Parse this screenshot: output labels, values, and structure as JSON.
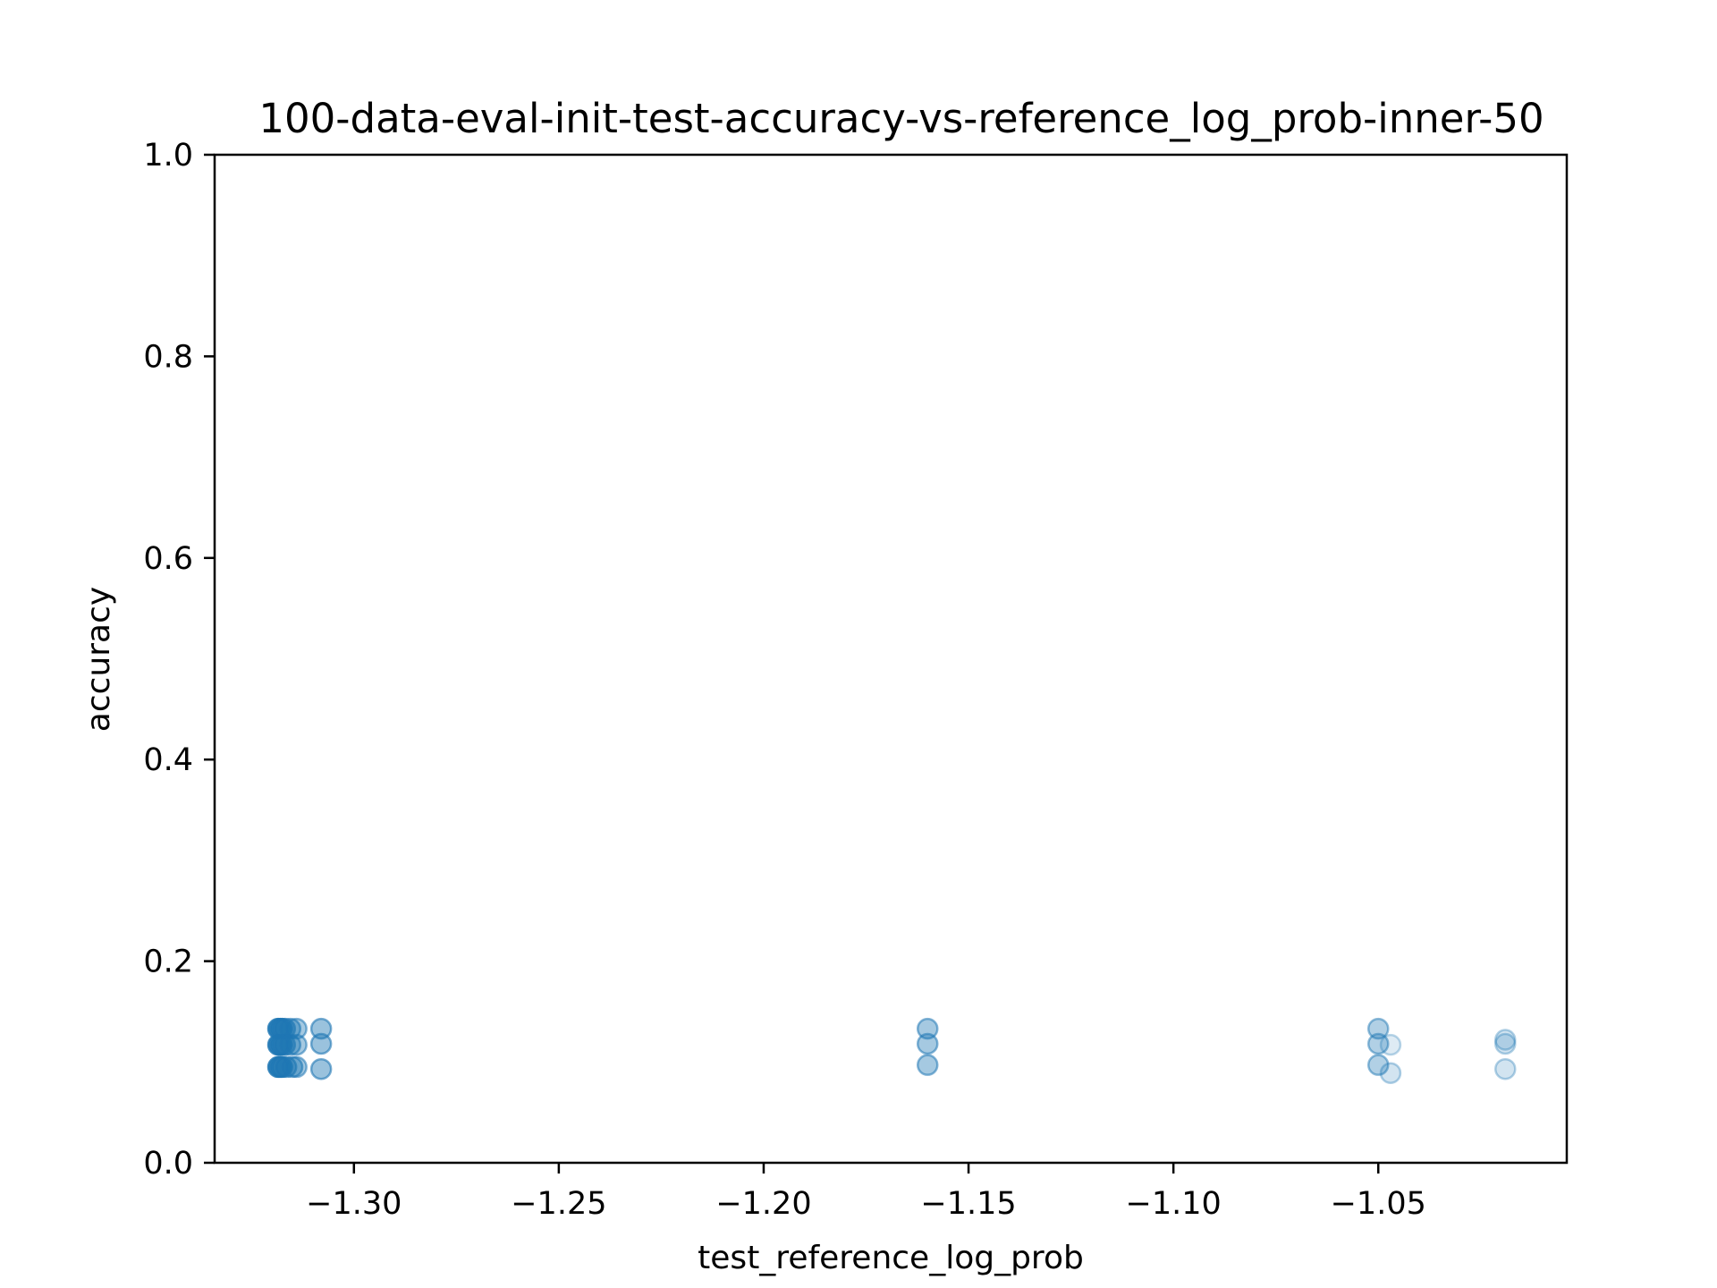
{
  "chart_data": {
    "type": "scatter",
    "title": "100-data-eval-init-test-accuracy-vs-reference_log_prob-inner-50",
    "xlabel": "test_reference_log_prob",
    "ylabel": "accuracy",
    "xlim": [
      -1.334,
      -1.004
    ],
    "ylim": [
      0.0,
      1.0
    ],
    "xticks": [
      -1.3,
      -1.25,
      -1.2,
      -1.15,
      -1.1,
      -1.05
    ],
    "xtick_labels": [
      "−1.30",
      "−1.25",
      "−1.20",
      "−1.15",
      "−1.10",
      "−1.05"
    ],
    "yticks": [
      0.0,
      0.2,
      0.4,
      0.6,
      0.8,
      1.0
    ],
    "ytick_labels": [
      "0.0",
      "0.2",
      "0.4",
      "0.6",
      "0.8",
      "1.0"
    ],
    "grid": false,
    "marker_color": "#1f77b4",
    "series": [
      {
        "points": [
          {
            "x": -1.3185,
            "y": 0.133,
            "alpha": 0.7
          },
          {
            "x": -1.3185,
            "y": 0.117,
            "alpha": 0.7
          },
          {
            "x": -1.3185,
            "y": 0.095,
            "alpha": 0.7
          },
          {
            "x": -1.318,
            "y": 0.133,
            "alpha": 0.7
          },
          {
            "x": -1.318,
            "y": 0.117,
            "alpha": 0.7
          },
          {
            "x": -1.318,
            "y": 0.095,
            "alpha": 0.7
          },
          {
            "x": -1.3175,
            "y": 0.133,
            "alpha": 0.6
          },
          {
            "x": -1.3175,
            "y": 0.117,
            "alpha": 0.6
          },
          {
            "x": -1.3175,
            "y": 0.095,
            "alpha": 0.6
          },
          {
            "x": -1.3168,
            "y": 0.133,
            "alpha": 0.5
          },
          {
            "x": -1.3168,
            "y": 0.117,
            "alpha": 0.5
          },
          {
            "x": -1.3165,
            "y": 0.095,
            "alpha": 0.5
          },
          {
            "x": -1.3155,
            "y": 0.133,
            "alpha": 0.45
          },
          {
            "x": -1.3155,
            "y": 0.117,
            "alpha": 0.45
          },
          {
            "x": -1.315,
            "y": 0.095,
            "alpha": 0.45
          },
          {
            "x": -1.314,
            "y": 0.133,
            "alpha": 0.4
          },
          {
            "x": -1.314,
            "y": 0.117,
            "alpha": 0.4
          },
          {
            "x": -1.314,
            "y": 0.095,
            "alpha": 0.4
          },
          {
            "x": -1.308,
            "y": 0.133,
            "alpha": 0.45
          },
          {
            "x": -1.308,
            "y": 0.118,
            "alpha": 0.45
          },
          {
            "x": -1.308,
            "y": 0.093,
            "alpha": 0.45
          },
          {
            "x": -1.16,
            "y": 0.133,
            "alpha": 0.4
          },
          {
            "x": -1.16,
            "y": 0.118,
            "alpha": 0.4
          },
          {
            "x": -1.16,
            "y": 0.097,
            "alpha": 0.4
          },
          {
            "x": -1.05,
            "y": 0.133,
            "alpha": 0.35
          },
          {
            "x": -1.05,
            "y": 0.118,
            "alpha": 0.35
          },
          {
            "x": -1.05,
            "y": 0.097,
            "alpha": 0.35
          },
          {
            "x": -1.047,
            "y": 0.117,
            "alpha": 0.15
          },
          {
            "x": -1.047,
            "y": 0.089,
            "alpha": 0.2
          },
          {
            "x": -1.019,
            "y": 0.122,
            "alpha": 0.2
          },
          {
            "x": -1.019,
            "y": 0.118,
            "alpha": 0.2
          },
          {
            "x": -1.019,
            "y": 0.093,
            "alpha": 0.2
          }
        ]
      }
    ]
  }
}
